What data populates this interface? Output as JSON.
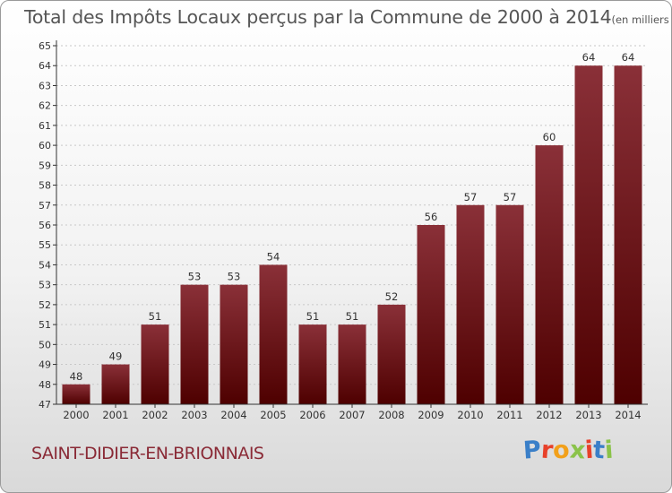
{
  "title": "Total des Impôts Locaux perçus par la Commune de 2000 à 2014",
  "title_unit": "(en milliers d'€)",
  "commune": "SAINT-DIDIER-EN-BRIONNAIS",
  "brand": {
    "letters": [
      "P",
      "r",
      "o",
      "x",
      "i",
      "t",
      "i"
    ],
    "colors": [
      "#3a7fc8",
      "#e8412a",
      "#f2a01a",
      "#8bc34a",
      "#e8412a",
      "#3a7fc8",
      "#8bc34a"
    ]
  },
  "colors": {
    "bar_top": "#8a3038",
    "bar_bottom": "#4e0000",
    "grid": "#c8c8c8",
    "axis": "#333333"
  },
  "chart_data": {
    "type": "bar",
    "title": "Total des Impôts Locaux perçus par la Commune de 2000 à 2014",
    "xlabel": "",
    "ylabel": "",
    "categories": [
      "2000",
      "2001",
      "2002",
      "2003",
      "2004",
      "2005",
      "2006",
      "2007",
      "2008",
      "2009",
      "2010",
      "2011",
      "2012",
      "2013",
      "2014"
    ],
    "values": [
      48,
      49,
      51,
      53,
      53,
      54,
      51,
      51,
      52,
      56,
      57,
      57,
      60,
      64,
      64
    ],
    "ylim": [
      47,
      65
    ],
    "yticks": [
      47,
      48,
      49,
      50,
      51,
      52,
      53,
      54,
      55,
      56,
      57,
      58,
      59,
      60,
      61,
      62,
      63,
      64,
      65
    ],
    "grid": true
  }
}
